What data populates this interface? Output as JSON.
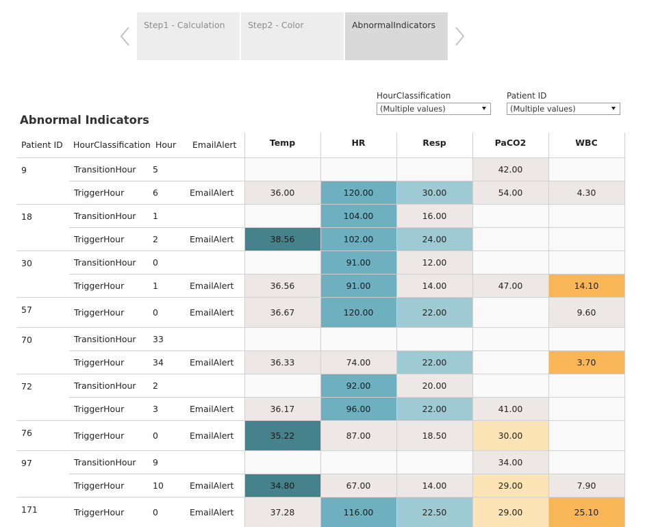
{
  "story": {
    "tabs": [
      {
        "label": "Step1 - Calculation",
        "active": false
      },
      {
        "label": "Step2 - Color",
        "active": false
      },
      {
        "label": "AbnormalIndicators",
        "active": true
      }
    ]
  },
  "filters": {
    "hour_classification": {
      "label": "HourClassification",
      "value": "(Multiple values)"
    },
    "patient_id": {
      "label": "Patient ID",
      "value": "(Multiple values)"
    }
  },
  "sheet": {
    "title": "Abnormal Indicators"
  },
  "table": {
    "row_headers": [
      "Patient ID",
      "HourClassification",
      "Hour",
      "EmailAlert"
    ],
    "measure_headers": [
      "Temp",
      "HR",
      "Resp",
      "PaCO2",
      "WBC"
    ],
    "colors": {
      "neutral": "#ede7e5",
      "empty": "#f9f9f9",
      "teal_dark": "#46828b",
      "teal_mid": "#6fb0c0",
      "teal_light": "#9ecbd3",
      "orange": "#f9b656",
      "peach": "#fde4b6"
    },
    "groups": [
      {
        "patient_id": "9",
        "rows": [
          {
            "classification": "TransitionHour",
            "hour": "5",
            "alert": "",
            "cells": [
              {
                "v": "",
                "c": "empty"
              },
              {
                "v": "",
                "c": "empty"
              },
              {
                "v": "",
                "c": "empty"
              },
              {
                "v": "42.00",
                "c": "neutral"
              },
              {
                "v": "",
                "c": "empty"
              }
            ]
          },
          {
            "classification": "TriggerHour",
            "hour": "6",
            "alert": "EmailAlert",
            "cells": [
              {
                "v": "36.00",
                "c": "neutral"
              },
              {
                "v": "120.00",
                "c": "teal_mid"
              },
              {
                "v": "30.00",
                "c": "teal_light"
              },
              {
                "v": "54.00",
                "c": "neutral"
              },
              {
                "v": "4.30",
                "c": "neutral"
              }
            ]
          }
        ]
      },
      {
        "patient_id": "18",
        "rows": [
          {
            "classification": "TransitionHour",
            "hour": "1",
            "alert": "",
            "cells": [
              {
                "v": "",
                "c": "empty"
              },
              {
                "v": "104.00",
                "c": "teal_mid"
              },
              {
                "v": "16.00",
                "c": "neutral"
              },
              {
                "v": "",
                "c": "empty"
              },
              {
                "v": "",
                "c": "empty"
              }
            ]
          },
          {
            "classification": "TriggerHour",
            "hour": "2",
            "alert": "EmailAlert",
            "cells": [
              {
                "v": "38.56",
                "c": "teal_dark"
              },
              {
                "v": "102.00",
                "c": "teal_mid"
              },
              {
                "v": "24.00",
                "c": "teal_light"
              },
              {
                "v": "",
                "c": "empty"
              },
              {
                "v": "",
                "c": "empty"
              }
            ]
          }
        ]
      },
      {
        "patient_id": "30",
        "rows": [
          {
            "classification": "TransitionHour",
            "hour": "0",
            "alert": "",
            "cells": [
              {
                "v": "",
                "c": "empty"
              },
              {
                "v": "91.00",
                "c": "teal_mid"
              },
              {
                "v": "12.00",
                "c": "neutral"
              },
              {
                "v": "",
                "c": "empty"
              },
              {
                "v": "",
                "c": "empty"
              }
            ]
          },
          {
            "classification": "TriggerHour",
            "hour": "1",
            "alert": "EmailAlert",
            "cells": [
              {
                "v": "36.56",
                "c": "neutral"
              },
              {
                "v": "91.00",
                "c": "teal_mid"
              },
              {
                "v": "14.00",
                "c": "neutral"
              },
              {
                "v": "47.00",
                "c": "neutral"
              },
              {
                "v": "14.10",
                "c": "orange"
              }
            ]
          }
        ]
      },
      {
        "patient_id": "57",
        "rows": [
          {
            "classification": "TriggerHour",
            "hour": "0",
            "alert": "EmailAlert",
            "cells": [
              {
                "v": "36.67",
                "c": "neutral"
              },
              {
                "v": "120.00",
                "c": "teal_mid"
              },
              {
                "v": "22.00",
                "c": "teal_light"
              },
              {
                "v": "",
                "c": "empty"
              },
              {
                "v": "9.60",
                "c": "neutral"
              }
            ]
          }
        ]
      },
      {
        "patient_id": "70",
        "rows": [
          {
            "classification": "TransitionHour",
            "hour": "33",
            "alert": "",
            "cells": [
              {
                "v": "",
                "c": "empty"
              },
              {
                "v": "",
                "c": "empty"
              },
              {
                "v": "",
                "c": "empty"
              },
              {
                "v": "",
                "c": "empty"
              },
              {
                "v": "",
                "c": "empty"
              }
            ]
          },
          {
            "classification": "TriggerHour",
            "hour": "34",
            "alert": "EmailAlert",
            "cells": [
              {
                "v": "36.33",
                "c": "neutral"
              },
              {
                "v": "74.00",
                "c": "neutral"
              },
              {
                "v": "22.00",
                "c": "teal_light"
              },
              {
                "v": "",
                "c": "empty"
              },
              {
                "v": "3.70",
                "c": "orange"
              }
            ]
          }
        ]
      },
      {
        "patient_id": "72",
        "rows": [
          {
            "classification": "TransitionHour",
            "hour": "2",
            "alert": "",
            "cells": [
              {
                "v": "",
                "c": "empty"
              },
              {
                "v": "92.00",
                "c": "teal_mid"
              },
              {
                "v": "20.00",
                "c": "neutral"
              },
              {
                "v": "",
                "c": "empty"
              },
              {
                "v": "",
                "c": "empty"
              }
            ]
          },
          {
            "classification": "TriggerHour",
            "hour": "3",
            "alert": "EmailAlert",
            "cells": [
              {
                "v": "36.17",
                "c": "neutral"
              },
              {
                "v": "96.00",
                "c": "teal_mid"
              },
              {
                "v": "22.00",
                "c": "teal_light"
              },
              {
                "v": "41.00",
                "c": "neutral"
              },
              {
                "v": "",
                "c": "empty"
              }
            ]
          }
        ]
      },
      {
        "patient_id": "76",
        "rows": [
          {
            "classification": "TriggerHour",
            "hour": "0",
            "alert": "EmailAlert",
            "cells": [
              {
                "v": "35.22",
                "c": "teal_dark"
              },
              {
                "v": "87.00",
                "c": "neutral"
              },
              {
                "v": "18.50",
                "c": "neutral"
              },
              {
                "v": "30.00",
                "c": "peach"
              },
              {
                "v": "",
                "c": "empty"
              }
            ]
          }
        ]
      },
      {
        "patient_id": "97",
        "rows": [
          {
            "classification": "TransitionHour",
            "hour": "9",
            "alert": "",
            "cells": [
              {
                "v": "",
                "c": "empty"
              },
              {
                "v": "",
                "c": "empty"
              },
              {
                "v": "",
                "c": "empty"
              },
              {
                "v": "34.00",
                "c": "neutral"
              },
              {
                "v": "",
                "c": "empty"
              }
            ]
          },
          {
            "classification": "TriggerHour",
            "hour": "10",
            "alert": "EmailAlert",
            "cells": [
              {
                "v": "34.80",
                "c": "teal_dark"
              },
              {
                "v": "67.00",
                "c": "neutral"
              },
              {
                "v": "14.00",
                "c": "neutral"
              },
              {
                "v": "29.00",
                "c": "peach"
              },
              {
                "v": "7.90",
                "c": "neutral"
              }
            ]
          }
        ]
      },
      {
        "patient_id": "171",
        "rows": [
          {
            "classification": "TriggerHour",
            "hour": "0",
            "alert": "EmailAlert",
            "cells": [
              {
                "v": "37.28",
                "c": "neutral"
              },
              {
                "v": "116.00",
                "c": "teal_mid"
              },
              {
                "v": "22.50",
                "c": "teal_light"
              },
              {
                "v": "29.00",
                "c": "peach"
              },
              {
                "v": "25.10",
                "c": "orange"
              }
            ]
          }
        ]
      }
    ]
  }
}
